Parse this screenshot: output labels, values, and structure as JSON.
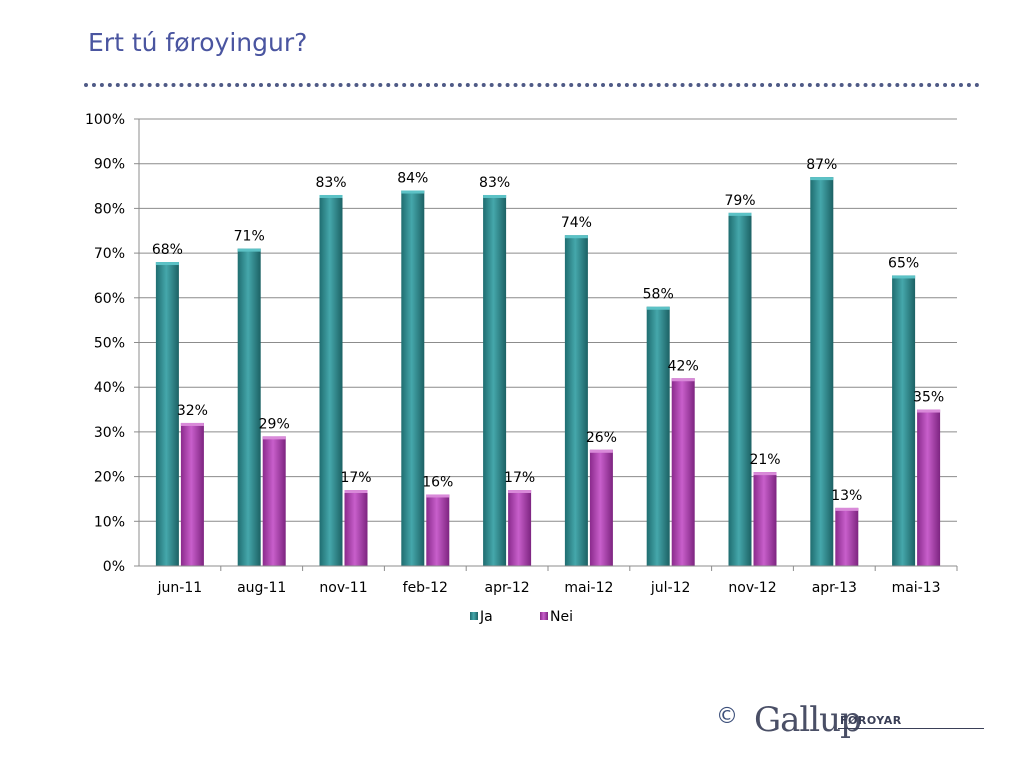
{
  "page": {
    "title": "Ert tú føroyingur?"
  },
  "footer": {
    "copyright": "©",
    "brand": "Gallup",
    "brand_sub": "FØROYAR"
  },
  "chart_data": {
    "type": "bar",
    "title": "",
    "xlabel": "",
    "ylabel": "",
    "ylim": [
      0,
      100
    ],
    "yticks": [
      "0%",
      "10%",
      "20%",
      "30%",
      "40%",
      "50%",
      "60%",
      "70%",
      "80%",
      "90%",
      "100%"
    ],
    "grid": true,
    "legend": "bottom",
    "categories": [
      "jun-11",
      "aug-11",
      "nov-11",
      "feb-12",
      "apr-12",
      "mai-12",
      "jul-12",
      "nov-12",
      "apr-13",
      "mai-13"
    ],
    "series": [
      {
        "name": "Ja",
        "color": "#2f8f93",
        "values": [
          68,
          71,
          83,
          84,
          83,
          74,
          58,
          79,
          87,
          65
        ],
        "labels": [
          "68%",
          "71%",
          "83%",
          "84%",
          "83%",
          "74%",
          "58%",
          "79%",
          "87%",
          "65%"
        ]
      },
      {
        "name": "Nei",
        "color": "#b43fb4",
        "values": [
          32,
          29,
          17,
          16,
          17,
          26,
          42,
          21,
          13,
          35
        ],
        "labels": [
          "32%",
          "29%",
          "17%",
          "16%",
          "17%",
          "26%",
          "42%",
          "21%",
          "13%",
          "35%"
        ]
      }
    ]
  }
}
